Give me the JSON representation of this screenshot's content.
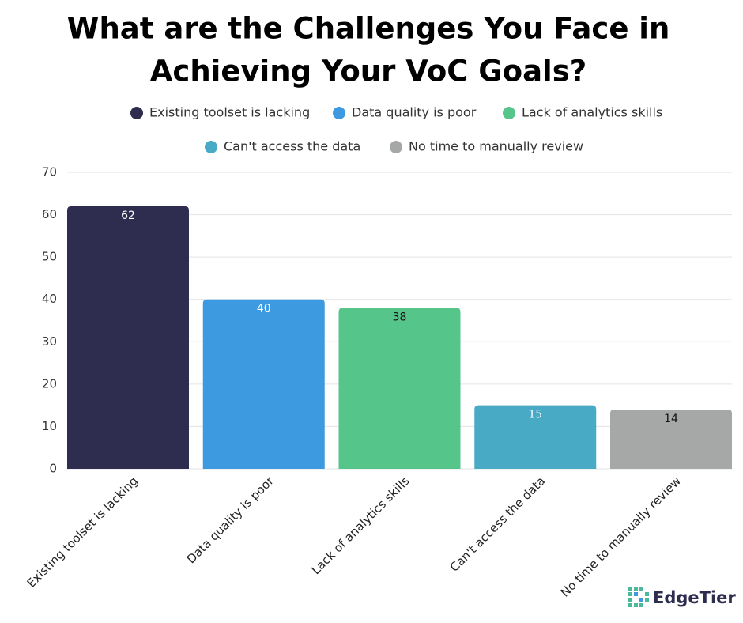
{
  "chart_data": {
    "type": "bar",
    "title": [
      "What are the Challenges You Face in",
      "Achieving Your VoC Goals?"
    ],
    "categories": [
      "Existing toolset is lacking",
      "Data quality is poor",
      "Lack of analytics skills",
      "Can't access the data",
      "No time to manually review"
    ],
    "values": [
      62,
      40,
      38,
      15,
      14
    ],
    "colors": [
      "#2e2d4f",
      "#3e9ae0",
      "#55c58a",
      "#48aac4",
      "#a6a8a8"
    ],
    "label_colors": [
      "#ffffff",
      "#ffffff",
      "#111111",
      "#ffffff",
      "#111111"
    ],
    "ylim": [
      0,
      70
    ],
    "yticks": [
      0,
      10,
      20,
      30,
      40,
      50,
      60,
      70
    ],
    "grid": true,
    "legend": "top",
    "brand": "EdgeTier"
  }
}
